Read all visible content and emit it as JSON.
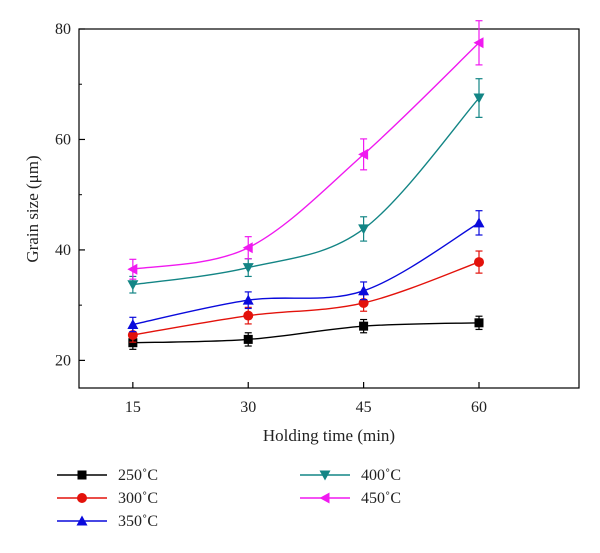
{
  "chart_data": {
    "type": "line",
    "title": "",
    "xlabel": "Holding time (min)",
    "ylabel": "Grain size (μm)",
    "x": [
      15,
      30,
      45,
      60
    ],
    "xticks": [
      "15",
      "30",
      "45",
      "60"
    ],
    "xlim": [
      8,
      73
    ],
    "ylim": [
      15,
      80
    ],
    "yticks": [
      "20",
      "40",
      "60",
      "80"
    ],
    "ytick_values": [
      20,
      40,
      60,
      80
    ],
    "grid": false,
    "legend_position": "bottom",
    "series": [
      {
        "name": "250˚C",
        "color": "#000000",
        "marker": "square",
        "values": [
          23.2,
          23.8,
          26.2,
          26.8
        ],
        "errors": [
          1.2,
          1.2,
          1.2,
          1.2
        ]
      },
      {
        "name": "300˚C",
        "color": "#e3120b",
        "marker": "circle",
        "values": [
          24.6,
          28.1,
          30.4,
          37.8
        ],
        "errors": [
          1.3,
          1.5,
          1.5,
          2.0
        ]
      },
      {
        "name": "350˚C",
        "color": "#0a0adc",
        "marker": "triangle-up",
        "values": [
          26.5,
          30.9,
          32.6,
          44.9
        ],
        "errors": [
          1.3,
          1.5,
          1.6,
          2.2
        ]
      },
      {
        "name": "400˚C",
        "color": "#138585",
        "marker": "triangle-down",
        "values": [
          33.7,
          36.8,
          43.8,
          67.5
        ],
        "errors": [
          1.5,
          1.6,
          2.2,
          3.5
        ]
      },
      {
        "name": "450˚C",
        "color": "#f019f0",
        "marker": "triangle-left",
        "values": [
          36.5,
          40.4,
          57.3,
          77.5
        ],
        "errors": [
          1.8,
          2.0,
          2.8,
          4.0
        ]
      }
    ]
  }
}
